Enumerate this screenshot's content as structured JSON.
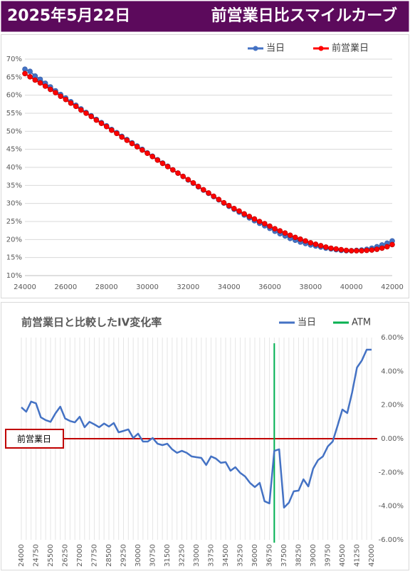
{
  "header": {
    "date": "2025年5月22日",
    "title": "前営業日比スマイルカーブ"
  },
  "chart_data": [
    {
      "type": "line",
      "markers": true,
      "grid": "y",
      "x": [
        24000,
        24250,
        24500,
        24750,
        25000,
        25250,
        25500,
        25750,
        26000,
        26250,
        26500,
        26750,
        27000,
        27250,
        27500,
        27750,
        28000,
        28250,
        28500,
        28750,
        29000,
        29250,
        29500,
        29750,
        30000,
        30250,
        30500,
        30750,
        31000,
        31250,
        31500,
        31750,
        32000,
        32250,
        32500,
        32750,
        33000,
        33250,
        33500,
        33750,
        34000,
        34250,
        34500,
        34750,
        35000,
        35250,
        35500,
        35750,
        36000,
        36250,
        36500,
        36750,
        37000,
        37250,
        37500,
        37750,
        38000,
        38250,
        38500,
        38750,
        39000,
        39250,
        39500,
        39750,
        40000,
        40250,
        40500,
        40750,
        41000,
        41250,
        41500,
        41750,
        42000
      ],
      "xlim": [
        24000,
        42000
      ],
      "xticks": [
        24000,
        26000,
        28000,
        30000,
        32000,
        34000,
        36000,
        38000,
        40000,
        42000
      ],
      "ylim": [
        10,
        70
      ],
      "yticks": [
        {
          "value": 10,
          "label": "10%"
        },
        {
          "value": 15,
          "label": "15%"
        },
        {
          "value": 20,
          "label": "20%"
        },
        {
          "value": 25,
          "label": "25%"
        },
        {
          "value": 30,
          "label": "30%"
        },
        {
          "value": 35,
          "label": "35%"
        },
        {
          "value": 40,
          "label": "40%"
        },
        {
          "value": 45,
          "label": "45%"
        },
        {
          "value": 50,
          "label": "50%"
        },
        {
          "value": 55,
          "label": "55%"
        },
        {
          "value": 60,
          "label": "60%"
        },
        {
          "value": 65,
          "label": "65%"
        },
        {
          "value": 70,
          "label": "70%"
        }
      ],
      "series": [
        {
          "name": "当日",
          "color": "#4472c4",
          "values": [
            67.2,
            66.6,
            65.3,
            64.4,
            63.3,
            62.3,
            61.2,
            60.2,
            59.2,
            58.2,
            57.2,
            56.2,
            55.2,
            54.3,
            53.3,
            52.4,
            51.5,
            50.5,
            49.6,
            48.6,
            47.7,
            46.8,
            45.9,
            45.0,
            44.0,
            43.1,
            42.1,
            41.2,
            40.3,
            39.3,
            38.4,
            37.5,
            36.5,
            35.6,
            34.6,
            33.7,
            32.8,
            31.9,
            31.0,
            30.1,
            29.2,
            28.4,
            27.6,
            26.8,
            26.0,
            25.2,
            24.5,
            23.8,
            23.1,
            22.3,
            21.6,
            21.0,
            20.3,
            19.8,
            19.3,
            18.9,
            18.5,
            18.2,
            17.9,
            17.6,
            17.4,
            17.2,
            17.0,
            16.9,
            16.9,
            17.0,
            17.1,
            17.3,
            17.6,
            18.0,
            18.5,
            19.0,
            19.6
          ]
        },
        {
          "name": "前営業日",
          "color": "#ff0000",
          "values": [
            66.0,
            65.1,
            64.2,
            63.4,
            62.5,
            61.6,
            60.7,
            59.7,
            58.8,
            57.8,
            56.9,
            55.9,
            55.0,
            54.1,
            53.1,
            52.2,
            51.3,
            50.3,
            49.4,
            48.4,
            47.5,
            46.6,
            45.7,
            44.8,
            43.9,
            43.0,
            42.0,
            41.1,
            40.2,
            39.3,
            38.4,
            37.5,
            36.6,
            35.7,
            34.7,
            33.8,
            32.9,
            32.0,
            31.1,
            30.2,
            29.4,
            28.6,
            27.9,
            27.1,
            26.4,
            25.7,
            25.0,
            24.4,
            23.7,
            23.0,
            22.4,
            21.8,
            21.2,
            20.6,
            20.1,
            19.6,
            19.1,
            18.7,
            18.3,
            17.9,
            17.6,
            17.4,
            17.2,
            17.0,
            16.9,
            16.9,
            16.9,
            17.0,
            17.1,
            17.3,
            17.6,
            18.0,
            18.6
          ]
        }
      ]
    },
    {
      "type": "line",
      "markers": false,
      "grid": "x",
      "title": "前営業日と比較したIV変化率",
      "x": [
        24000,
        24250,
        24500,
        24750,
        25000,
        25250,
        25500,
        25750,
        26000,
        26250,
        26500,
        26750,
        27000,
        27250,
        27500,
        27750,
        28000,
        28250,
        28500,
        28750,
        29000,
        29250,
        29500,
        29750,
        30000,
        30250,
        30500,
        30750,
        31000,
        31250,
        31500,
        31750,
        32000,
        32250,
        32500,
        32750,
        33000,
        33250,
        33500,
        33750,
        34000,
        34250,
        34500,
        34750,
        35000,
        35250,
        35500,
        35750,
        36000,
        36250,
        36500,
        36750,
        37000,
        37250,
        37500,
        37750,
        38000,
        38250,
        38500,
        38750,
        39000,
        39250,
        39500,
        39750,
        40000,
        40250,
        40500,
        40750,
        41000,
        41250,
        41500,
        41750,
        42000
      ],
      "xlim": [
        24000,
        42000
      ],
      "xticks": [
        24000,
        24750,
        25500,
        26250,
        27000,
        27750,
        28500,
        29250,
        30000,
        30750,
        31500,
        32250,
        33000,
        33750,
        34500,
        35250,
        36000,
        36750,
        37500,
        38250,
        39000,
        39750,
        40500,
        41250,
        42000
      ],
      "ylim": [
        -6,
        6
      ],
      "yticks": [
        {
          "value": -6,
          "label": "-6.00%"
        },
        {
          "value": -4,
          "label": "-4.00%"
        },
        {
          "value": -2,
          "label": "-2.00%"
        },
        {
          "value": 0,
          "label": "0.00%"
        },
        {
          "value": 2,
          "label": "2.00%"
        },
        {
          "value": 4,
          "label": "4.00%"
        },
        {
          "value": 6,
          "label": "6.00%"
        }
      ],
      "series": [
        {
          "name": "当日",
          "color": "#4472c4",
          "values": [
            1.86,
            1.6,
            2.2,
            2.1,
            1.27,
            1.1,
            1.0,
            1.5,
            1.9,
            1.2,
            1.05,
            0.97,
            1.3,
            0.68,
            1.0,
            0.85,
            0.68,
            0.9,
            0.72,
            0.93,
            0.38,
            0.46,
            0.55,
            0.04,
            0.3,
            -0.17,
            -0.17,
            0.04,
            -0.3,
            -0.38,
            -0.3,
            -0.63,
            -0.84,
            -0.72,
            -0.84,
            -1.05,
            -1.1,
            -1.14,
            -1.56,
            -1.05,
            -1.18,
            -1.43,
            -1.39,
            -1.9,
            -1.69,
            -2.03,
            -2.24,
            -2.62,
            -2.87,
            -2.62,
            -3.71,
            -3.84,
            -0.72,
            -0.63,
            -4.09,
            -3.8,
            -3.12,
            -3.08,
            -2.41,
            -2.83,
            -1.77,
            -1.27,
            -1.05,
            -0.46,
            -0.17,
            0.76,
            1.73,
            1.52,
            2.74,
            4.22,
            4.64,
            5.28,
            5.28
          ]
        }
      ],
      "atm": {
        "name": "ATM",
        "color": "#00b050",
        "x": 37000
      },
      "reference_line": {
        "label": "前営業日",
        "value": 0,
        "color": "#c00000"
      }
    }
  ]
}
